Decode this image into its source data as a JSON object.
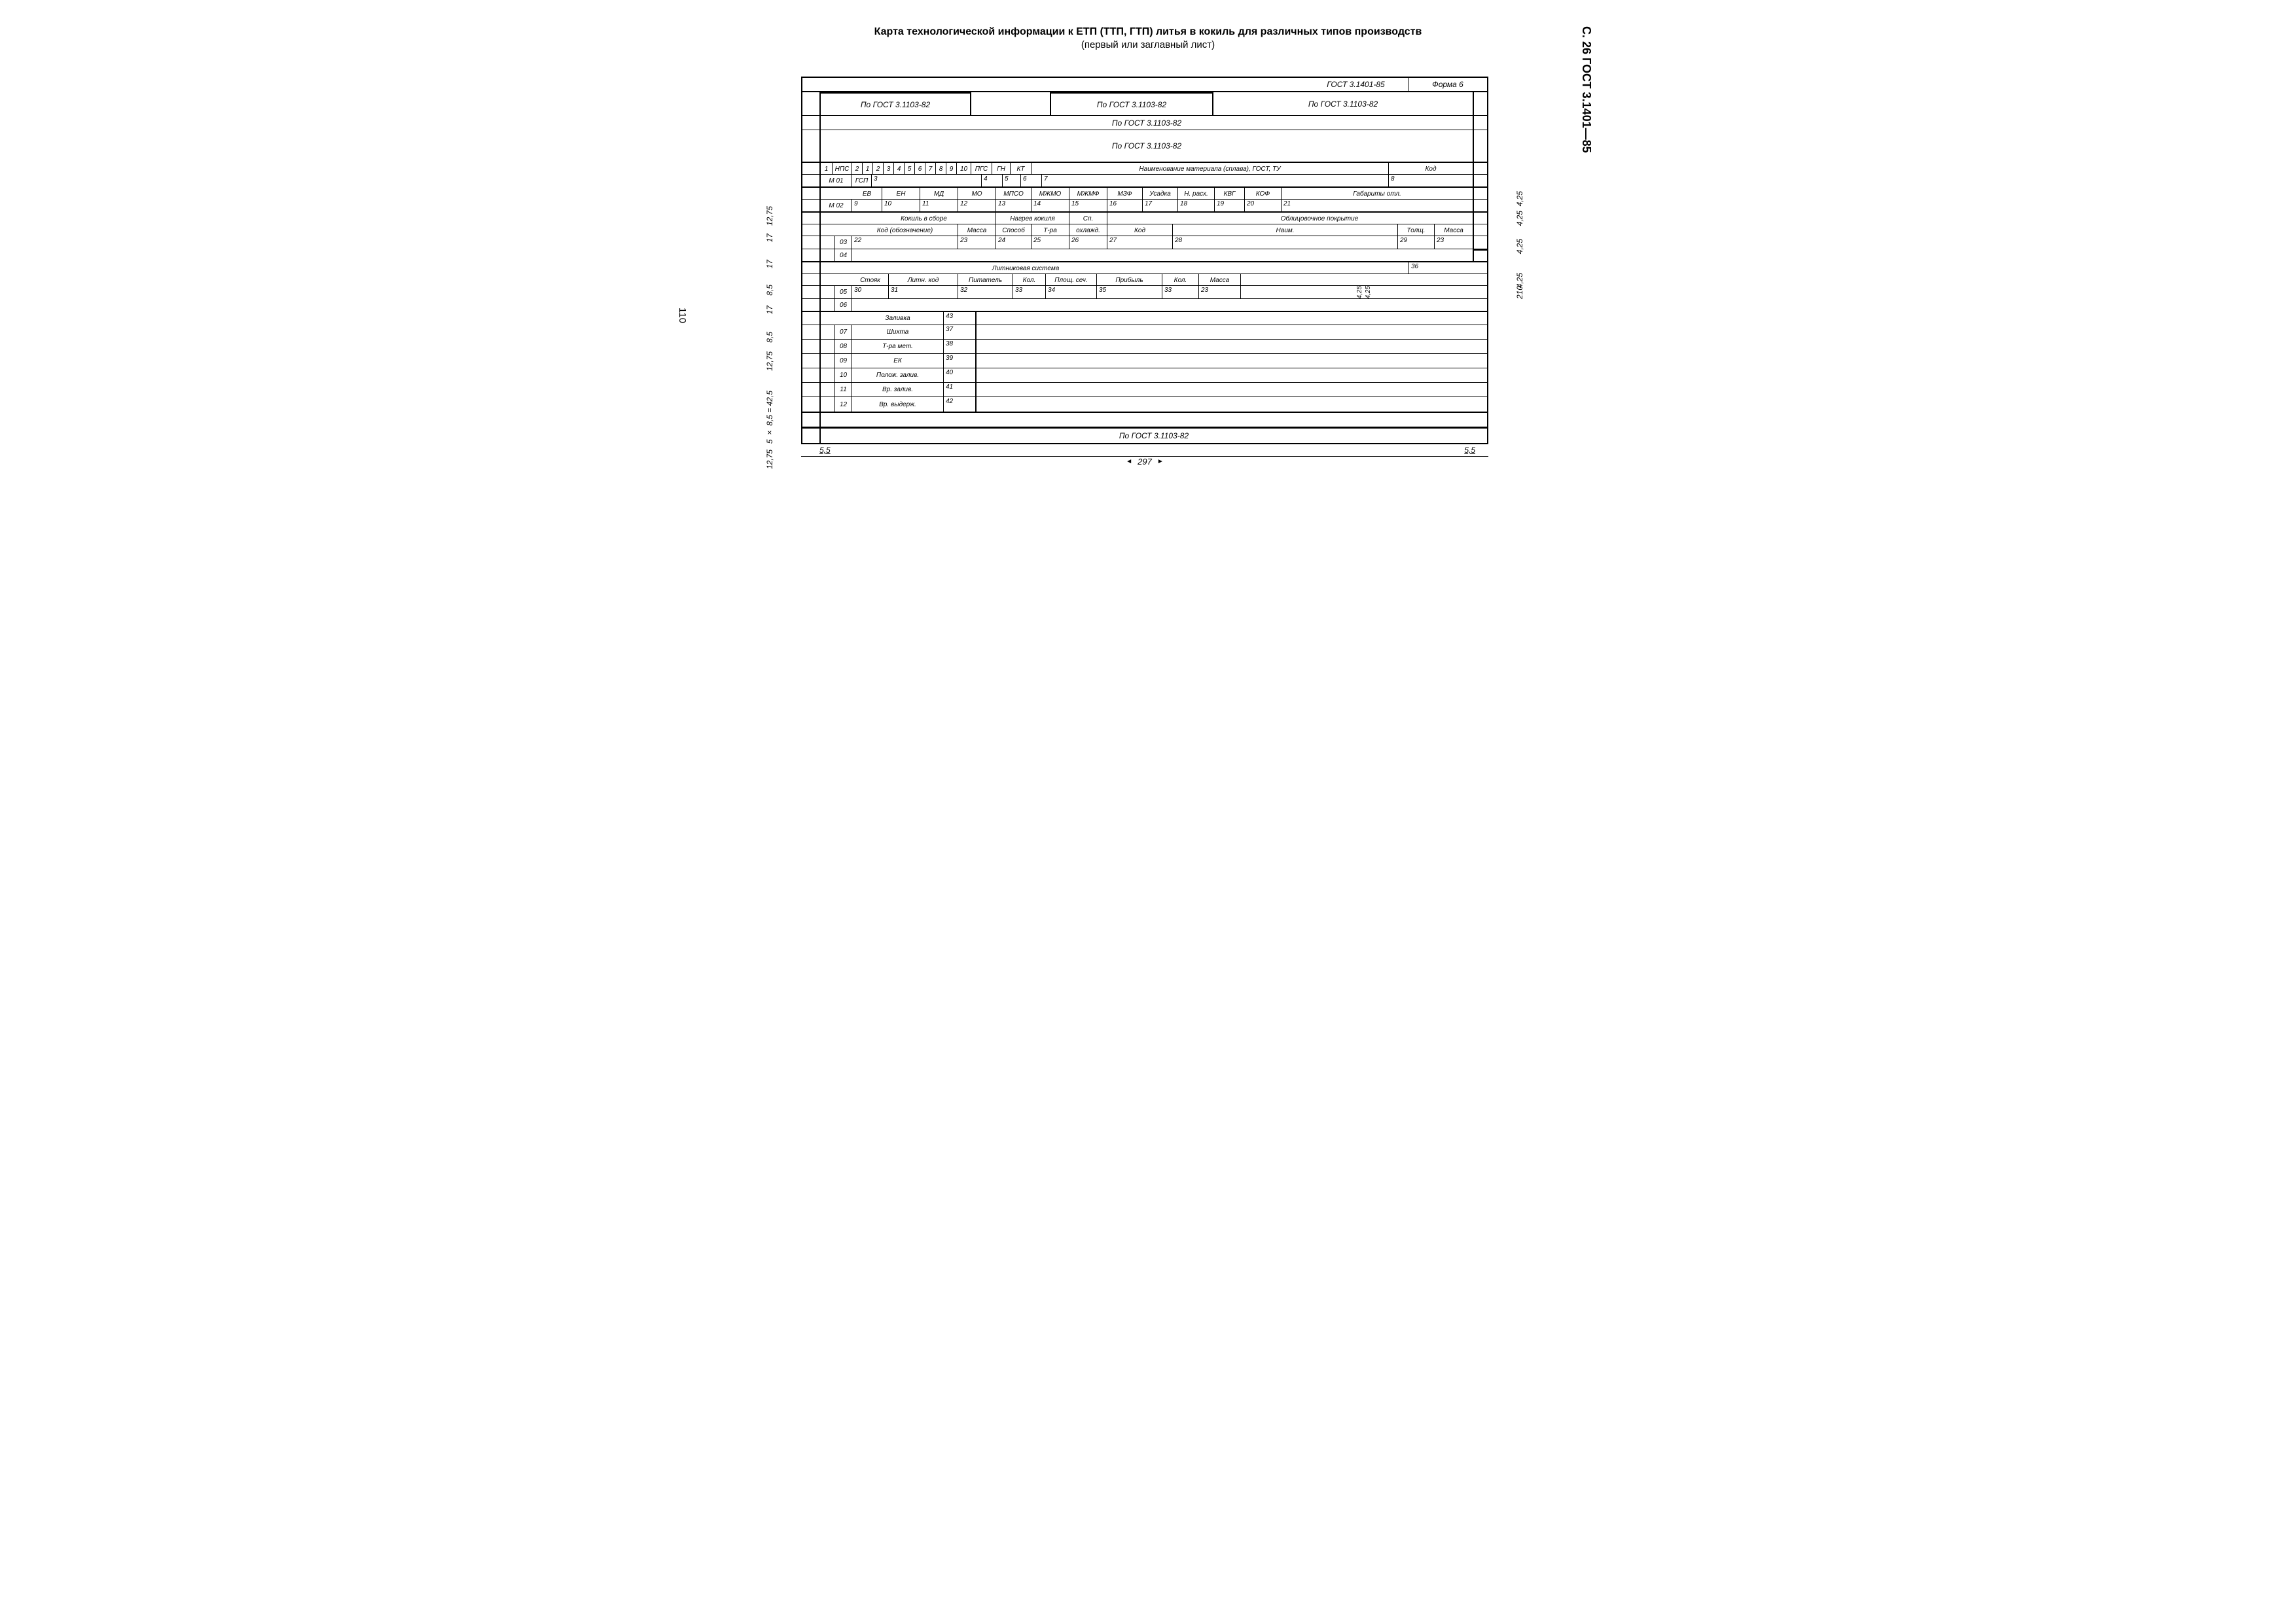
{
  "header_vertical": "С. 26 ГОСТ 3.1401—85",
  "title": "Карта технологической информации к ЕТП (ТТП, ГТП) литья в кокиль для различных типов производств",
  "subtitle": "(первый или заглавный лист)",
  "side_page_num": "110",
  "top_right": {
    "gost": "ГОСТ 3.1401-85",
    "form": "Форма 6"
  },
  "gost_ref": "По ГОСТ 3.1103-82",
  "dims": {
    "left": [
      "12,75",
      "17",
      "17",
      "8,5",
      "17",
      "8,5",
      "12,75",
      "5 × 8,5 = 42,5",
      "12,75"
    ],
    "right": [
      "4,25",
      "4,25",
      "4,25",
      "4,25",
      "210",
      "4,25",
      "4,25"
    ],
    "bottom_margin_l": "5,5",
    "bottom_margin_r": "5,5",
    "bottom_width": "297"
  },
  "r1": {
    "c1": "1",
    "nps": "НПС",
    "nums": [
      "2",
      "1",
      "2",
      "3",
      "4",
      "5",
      "6",
      "7",
      "8",
      "9",
      "10"
    ],
    "pgs": "ПГС",
    "gn": "ГН",
    "kt": "КТ",
    "material": "Наименование материала (сплава), ГОСТ, ТУ",
    "kod": "Код"
  },
  "r2": {
    "m01": "М 01",
    "gsp": "ГСП",
    "n3": "3",
    "n4": "4",
    "n5": "5",
    "n6": "6",
    "n7": "7",
    "n8": "8"
  },
  "r3": {
    "ev": "ЕВ",
    "en": "ЕН",
    "md": "МД",
    "mo": "МО",
    "mpso": "МПСО",
    "mzhmo": "МЖМО",
    "mzhmf": "МЖМФ",
    "mzf": "МЗФ",
    "usadka": "Усадка",
    "nrash": "Н. расх.",
    "kvg": "КВГ",
    "kof": "КОФ",
    "gab": "Габариты отл."
  },
  "r4": {
    "m02": "М 02",
    "n9": "9",
    "n10": "10",
    "n11": "11",
    "n12": "12",
    "n13": "13",
    "n14": "14",
    "n15": "15",
    "n16": "16",
    "n17": "17",
    "n18": "18",
    "n19": "19",
    "n20": "20",
    "n21": "21"
  },
  "r5": {
    "kokil": "Кокиль в сборе",
    "nagrev": "Нагрев кокиля",
    "sp": "Сп.",
    "obl": "Облицовочное покрытие",
    "kod": "Код (обозначение)",
    "massa": "Масса",
    "sposob": "Способ",
    "tra": "Т-ра",
    "okhl": "охлажд.",
    "kod2": "Код",
    "naim": "Наим.",
    "tolsh": "Толщ.",
    "massa2": "Масса"
  },
  "r6": {
    "n03": "03",
    "n22": "22",
    "n23": "23",
    "n24": "24",
    "n25": "25",
    "n26": "26",
    "n27": "27",
    "n28": "28",
    "n29": "29",
    "n23b": "23"
  },
  "r7": {
    "n04": "04"
  },
  "r8": {
    "lit": "Литниковая система",
    "n36": "36",
    "stoyak": "Стояк",
    "litnkod": "Литн. код",
    "pit": "Питатель",
    "kol": "Кол.",
    "plosh": "Площ. сеч.",
    "prib": "Прибыль",
    "kol2": "Кол.",
    "massa": "Масса"
  },
  "r9": {
    "n05": "05",
    "n30": "30",
    "n31": "31",
    "n32": "32",
    "n33": "33",
    "n34": "34",
    "n35": "35",
    "n33b": "33",
    "n23": "23"
  },
  "r10": {
    "n06": "06"
  },
  "r11": {
    "zalivka": "Заливка",
    "n43": "43"
  },
  "rows_bottom": [
    {
      "num": "07",
      "label": "Шихта",
      "ref": "37"
    },
    {
      "num": "08",
      "label": "Т-ра мет.",
      "ref": "38"
    },
    {
      "num": "09",
      "label": "ЕК",
      "ref": "39"
    },
    {
      "num": "10",
      "label": "Полож. залив.",
      "ref": "40"
    },
    {
      "num": "11",
      "label": "Вр. залив.",
      "ref": "41"
    },
    {
      "num": "12",
      "label": "Вр. выдерж.",
      "ref": "42"
    }
  ]
}
